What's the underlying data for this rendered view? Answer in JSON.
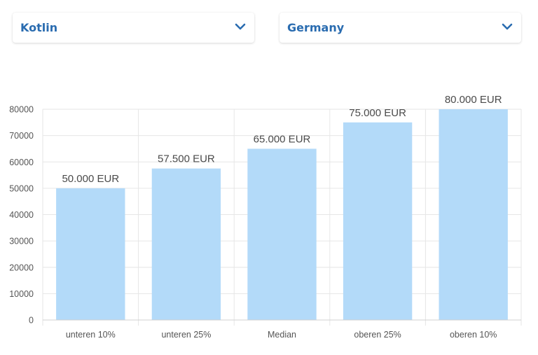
{
  "selects": {
    "language": {
      "value": "Kotlin"
    },
    "country": {
      "value": "Germany"
    }
  },
  "colors": {
    "accent": "#2a6cb0",
    "bar": "#b3daf9",
    "grid": "#e6e6e6",
    "axis_text": "#555555",
    "label_text": "#4a4a4a"
  },
  "icons": {
    "dropdown": "chevron-down-icon"
  },
  "chart_data": {
    "type": "bar",
    "categories": [
      "unteren 10%",
      "unteren 25%",
      "Median",
      "oberen 25%",
      "oberen 10%"
    ],
    "values": [
      50000,
      57500,
      65000,
      75000,
      80000
    ],
    "data_labels": [
      "50.000 EUR",
      "57.500 EUR",
      "65.000 EUR",
      "75.000 EUR",
      "80.000 EUR"
    ],
    "ylim": [
      0,
      80000
    ],
    "yticks": [
      0,
      10000,
      20000,
      30000,
      40000,
      50000,
      60000,
      70000,
      80000
    ],
    "title": "",
    "xlabel": "",
    "ylabel": "",
    "grid": true,
    "legend": "none"
  }
}
